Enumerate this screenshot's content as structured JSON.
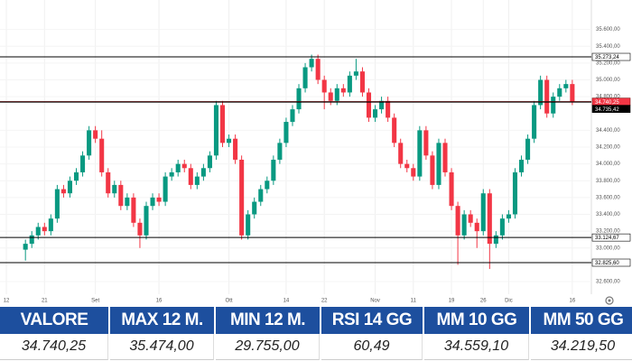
{
  "chart_data": {
    "type": "candlestick",
    "open": [
      32980,
      33050,
      33150,
      33250,
      33200,
      33350,
      33700,
      33650,
      33800,
      33900,
      34100,
      34400,
      34300,
      33900,
      33650,
      33750,
      33500,
      33600,
      33300,
      33150,
      33500,
      33600,
      33550,
      33850,
      33900,
      34000,
      33950,
      33750,
      33850,
      33950,
      34100,
      34700,
      34250,
      34300,
      34050,
      33150,
      33400,
      33550,
      33700,
      33800,
      34050,
      34250,
      34500,
      34650,
      34900,
      35150,
      35250,
      35000,
      34850,
      34750,
      34900,
      34850,
      35050,
      35100,
      34850,
      34550,
      34650,
      34750,
      34550,
      34250,
      34000,
      33950,
      33850,
      34400,
      34100,
      33750,
      34250,
      33900,
      33500,
      33150,
      33400,
      33300,
      33200,
      33650,
      33050,
      33150,
      33350,
      33400,
      33900,
      34050,
      34300,
      34700,
      35000,
      34600,
      34800,
      34900,
      34950
    ],
    "high": [
      33100,
      33200,
      33300,
      33300,
      33400,
      33750,
      33750,
      33850,
      33950,
      34150,
      34450,
      34450,
      34400,
      33950,
      33800,
      33800,
      33650,
      33650,
      33350,
      33550,
      33650,
      33650,
      33900,
      33950,
      34050,
      34050,
      34000,
      33900,
      34000,
      34150,
      34750,
      34750,
      34350,
      34350,
      34100,
      33450,
      33600,
      33750,
      33850,
      34100,
      34300,
      34550,
      34700,
      34950,
      35200,
      35300,
      35300,
      35050,
      34900,
      34950,
      34950,
      35100,
      35250,
      35150,
      34900,
      34700,
      34800,
      34800,
      34600,
      34300,
      34050,
      34000,
      34450,
      34450,
      34150,
      34300,
      34300,
      33950,
      33550,
      33450,
      33450,
      33350,
      33700,
      33700,
      33200,
      33400,
      33450,
      33950,
      34100,
      34350,
      34750,
      35050,
      35050,
      34850,
      34950,
      35000,
      35000
    ],
    "low": [
      32850,
      33000,
      33100,
      33150,
      33150,
      33300,
      33600,
      33600,
      33750,
      33850,
      34050,
      34250,
      33850,
      33600,
      33600,
      33450,
      33450,
      33250,
      33000,
      33100,
      33450,
      33500,
      33500,
      33800,
      33850,
      33900,
      33700,
      33700,
      33800,
      33900,
      34050,
      34200,
      34200,
      34000,
      33100,
      33100,
      33350,
      33500,
      33650,
      33750,
      34000,
      34200,
      34450,
      34600,
      34850,
      35100,
      34950,
      34650,
      34700,
      34700,
      34800,
      34800,
      35000,
      34800,
      34500,
      34500,
      34600,
      34500,
      34200,
      33950,
      33900,
      33800,
      33800,
      34050,
      33700,
      33700,
      33850,
      33450,
      32800,
      33100,
      33250,
      33000,
      33150,
      32750,
      33000,
      33100,
      33300,
      33350,
      33850,
      34000,
      34250,
      34650,
      34550,
      34550,
      34750,
      34850,
      34700
    ],
    "close": [
      33050,
      33150,
      33250,
      33200,
      33350,
      33700,
      33650,
      33800,
      33900,
      34100,
      34400,
      34300,
      33900,
      33650,
      33750,
      33500,
      33600,
      33300,
      33150,
      33500,
      33600,
      33550,
      33850,
      33900,
      34000,
      33950,
      33750,
      33850,
      33950,
      34100,
      34700,
      34250,
      34300,
      34050,
      33150,
      33400,
      33550,
      33700,
      33800,
      34050,
      34250,
      34500,
      34650,
      34900,
      35150,
      35250,
      35000,
      34850,
      34750,
      34900,
      34850,
      35050,
      35100,
      34850,
      34550,
      34650,
      34750,
      34550,
      34250,
      34000,
      33950,
      33850,
      34400,
      34100,
      33750,
      34250,
      33900,
      33500,
      33150,
      33400,
      33300,
      33200,
      33650,
      33050,
      33150,
      33350,
      33400,
      33900,
      34050,
      34300,
      34700,
      35000,
      34600,
      34800,
      34900,
      34950,
      34740
    ],
    "up_color": "#089981",
    "down_color": "#f23645",
    "xlim": [
      -4,
      89
    ],
    "xticks": [
      {
        "value": -3,
        "label": "12"
      },
      {
        "value": 3,
        "label": "21"
      },
      {
        "value": 11,
        "label": "Set"
      },
      {
        "value": 21,
        "label": "16"
      },
      {
        "value": 32,
        "label": "Ott"
      },
      {
        "value": 41,
        "label": "14"
      },
      {
        "value": 47,
        "label": "22"
      },
      {
        "value": 55,
        "label": "Nov"
      },
      {
        "value": 61,
        "label": "11"
      },
      {
        "value": 67,
        "label": "19"
      },
      {
        "value": 72,
        "label": "26"
      },
      {
        "value": 76,
        "label": "Dic"
      },
      {
        "value": 86,
        "label": "16"
      }
    ],
    "ylim": [
      32450,
      35950
    ],
    "yticks": [
      {
        "value": 32600,
        "label": "32.600,00"
      },
      {
        "value": 33000,
        "label": "33.000,00"
      },
      {
        "value": 33200,
        "label": "33.200,00"
      },
      {
        "value": 33400,
        "label": "33.400,00"
      },
      {
        "value": 33600,
        "label": "33.600,00"
      },
      {
        "value": 33800,
        "label": "33.800,00"
      },
      {
        "value": 34000,
        "label": "34.000,00"
      },
      {
        "value": 34200,
        "label": "34.200,00"
      },
      {
        "value": 34400,
        "label": "34.400,00"
      },
      {
        "value": 34800,
        "label": "34.800,00"
      },
      {
        "value": 35000,
        "label": "35.000,00"
      },
      {
        "value": 35200,
        "label": "35.200,00"
      },
      {
        "value": 35400,
        "label": "35.400,00"
      },
      {
        "value": 35600,
        "label": "35.600,00"
      }
    ],
    "grid": true,
    "price_lines": [
      {
        "value": 35273.24,
        "label": "35.273,24",
        "color": "#000000",
        "fill": "#ffffff"
      },
      {
        "value": 34740.25,
        "label": "34.740,25",
        "color": "#7a1010",
        "fill": "#f23645"
      },
      {
        "value": 34735.42,
        "label": "34.735,42",
        "color": "#000000",
        "fill": "#000000"
      },
      {
        "value": 33124.67,
        "label": "33.124,67",
        "color": "#000000",
        "fill": "#ffffff"
      },
      {
        "value": 32825.6,
        "label": "32.825,60",
        "color": "#000000",
        "fill": "#ffffff"
      }
    ]
  },
  "table": {
    "header": [
      "VALORE",
      "MAX 12 M.",
      "MIN 12 M.",
      "RSI 14 GG",
      "MM 10 GG",
      "MM 50 GG"
    ],
    "row": [
      "34.740,25",
      "35.474,00",
      "29.755,00",
      "60,49",
      "34.559,10",
      "34.219,50"
    ]
  }
}
